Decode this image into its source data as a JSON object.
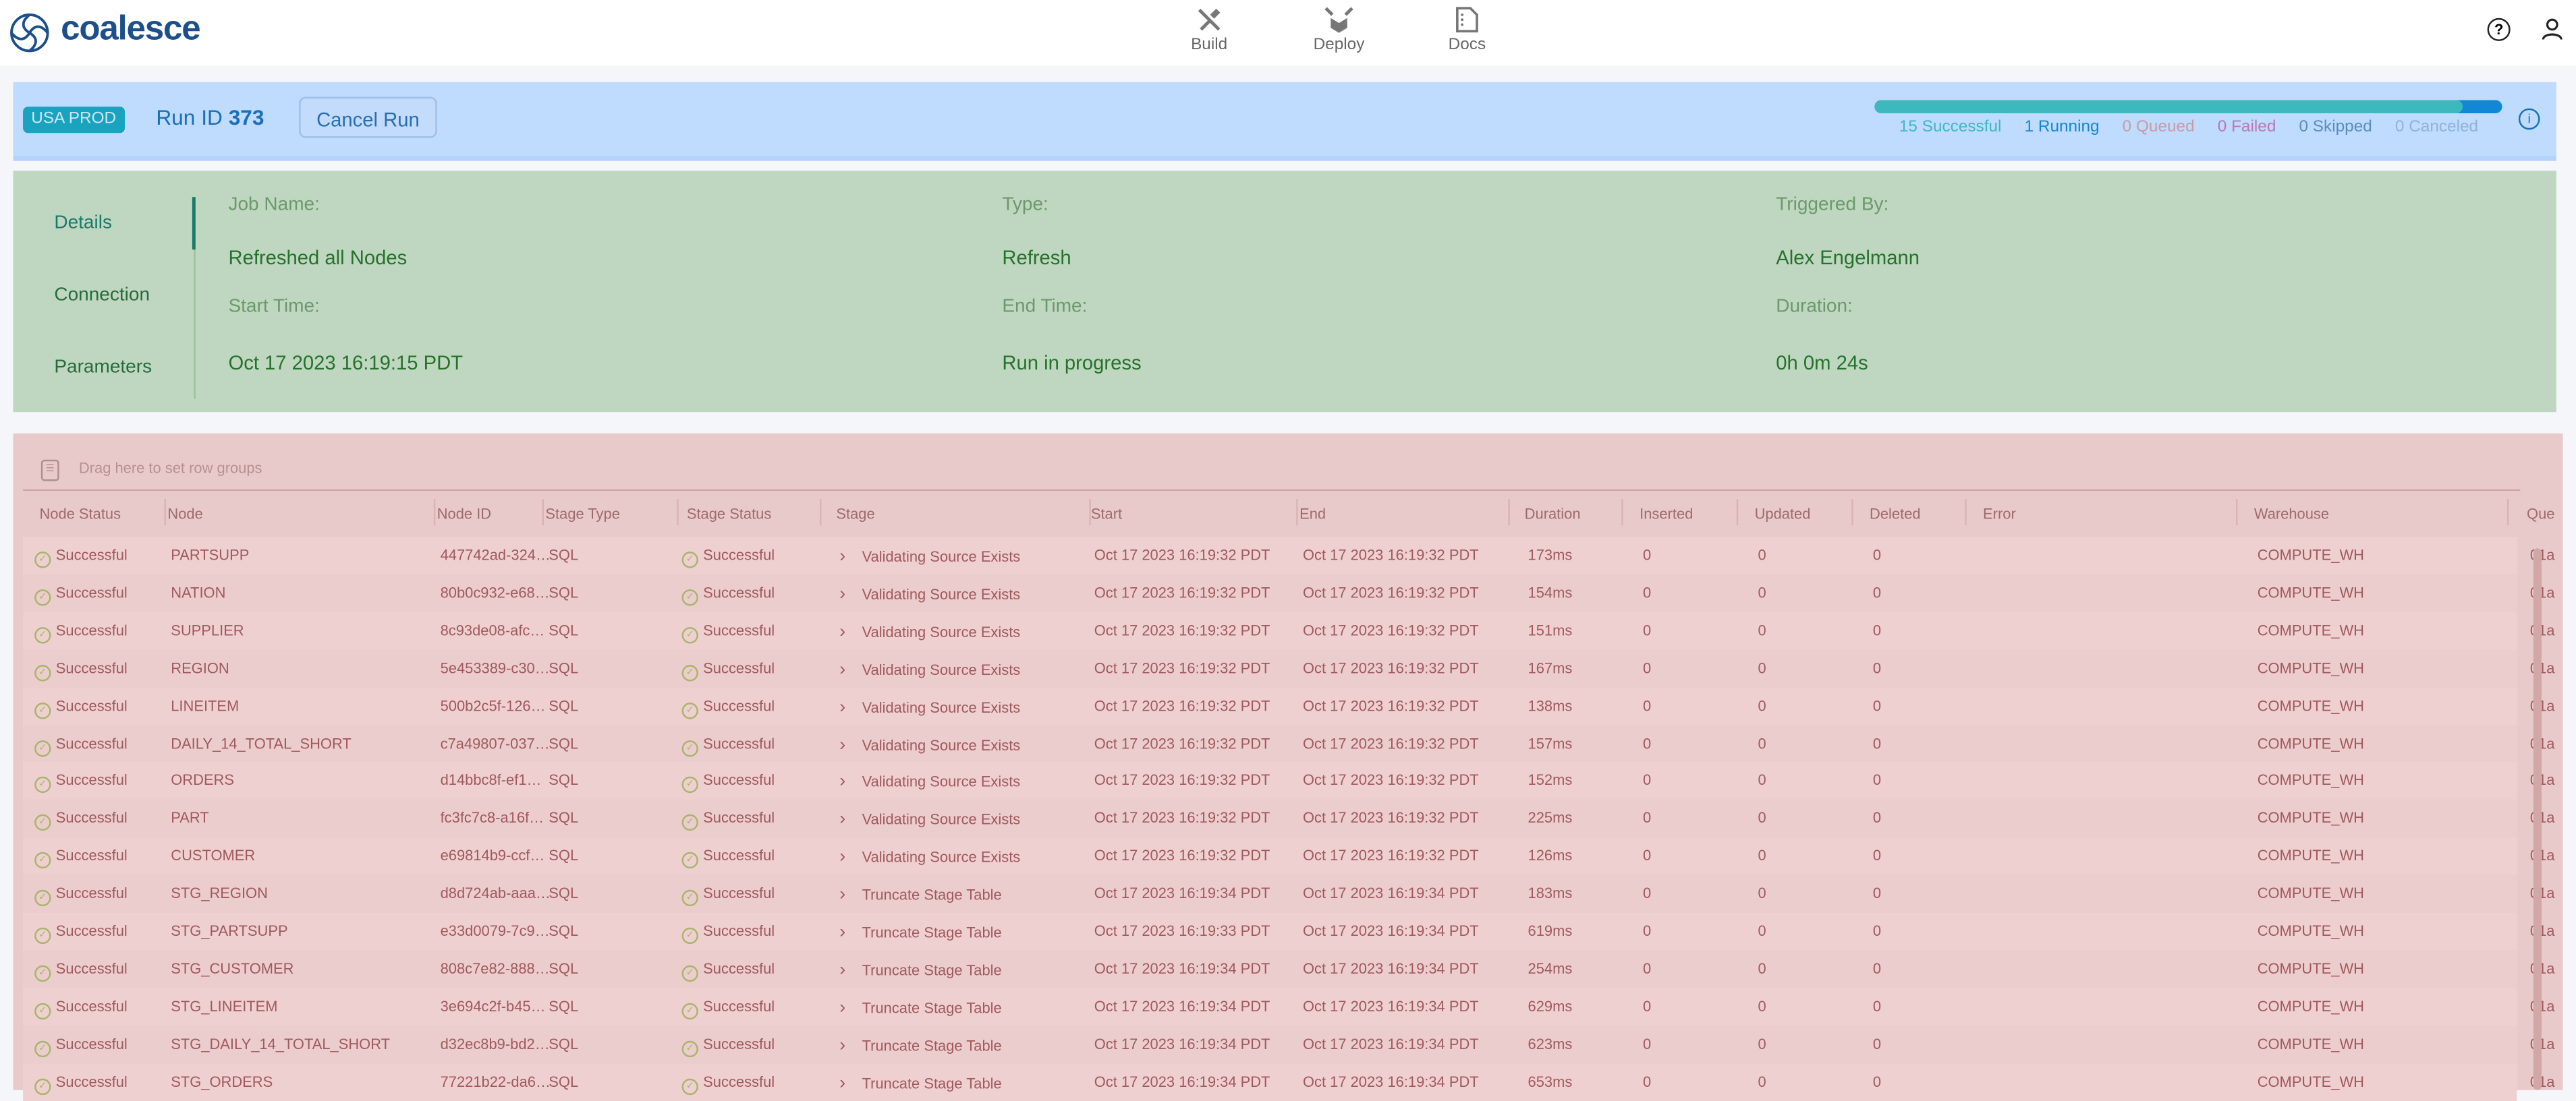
{
  "app": {
    "logo": "coalesce",
    "nav": [
      {
        "label": "Build",
        "icon": "tools-icon"
      },
      {
        "label": "Deploy",
        "icon": "deploy-box-icon"
      },
      {
        "label": "Docs",
        "icon": "document-icon"
      }
    ]
  },
  "run": {
    "environment": "USA PROD",
    "run_id_label": "Run ID",
    "run_id": "373",
    "cancel_label": "Cancel Run",
    "progress": {
      "successful": 15,
      "running": 1,
      "queued": 0,
      "failed": 0,
      "skipped": 0,
      "canceled": 0,
      "labels": [
        "15 Successful",
        "1 Running",
        "0 Queued",
        "0 Failed",
        "0 Skipped",
        "0 Canceled"
      ],
      "colors": [
        "#3db9be",
        "#1188d6",
        "#c89aa8",
        "#b979b5",
        "#5a8cc0",
        "#8fb2dc"
      ]
    }
  },
  "details": {
    "tabs": [
      "Details",
      "Connection",
      "Parameters"
    ],
    "active_tab": "Details",
    "fields": [
      {
        "label": "Job Name:",
        "value": "Refreshed all Nodes"
      },
      {
        "label": "Type:",
        "value": "Refresh"
      },
      {
        "label": "Triggered By:",
        "value": "Alex Engelmann"
      },
      {
        "label": "Start Time:",
        "value": "Oct 17 2023 16:19:15 PDT"
      },
      {
        "label": "End Time:",
        "value": "Run in progress"
      },
      {
        "label": "Duration:",
        "value": "0h 0m 24s"
      }
    ]
  },
  "table": {
    "row_group_placeholder": "Drag here to set row groups",
    "columns": [
      "Node Status",
      "Node",
      "Node ID",
      "Stage Type",
      "Stage Status",
      "Stage",
      "Start",
      "End",
      "Duration",
      "Inserted",
      "Updated",
      "Deleted",
      "Error",
      "Warehouse",
      "Que"
    ],
    "rows": [
      [
        "Successful",
        "PARTSUPP",
        "447742ad-324…",
        "SQL",
        "Successful",
        "Validating Source Exists",
        "Oct 17 2023 16:19:32 PDT",
        "Oct 17 2023 16:19:32 PDT",
        "173ms",
        "0",
        "0",
        "0",
        "",
        "COMPUTE_WH",
        "01a"
      ],
      [
        "Successful",
        "NATION",
        "80b0c932-e68…",
        "SQL",
        "Successful",
        "Validating Source Exists",
        "Oct 17 2023 16:19:32 PDT",
        "Oct 17 2023 16:19:32 PDT",
        "154ms",
        "0",
        "0",
        "0",
        "",
        "COMPUTE_WH",
        "01a"
      ],
      [
        "Successful",
        "SUPPLIER",
        "8c93de08-afc…",
        "SQL",
        "Successful",
        "Validating Source Exists",
        "Oct 17 2023 16:19:32 PDT",
        "Oct 17 2023 16:19:32 PDT",
        "151ms",
        "0",
        "0",
        "0",
        "",
        "COMPUTE_WH",
        "01a"
      ],
      [
        "Successful",
        "REGION",
        "5e453389-c30…",
        "SQL",
        "Successful",
        "Validating Source Exists",
        "Oct 17 2023 16:19:32 PDT",
        "Oct 17 2023 16:19:32 PDT",
        "167ms",
        "0",
        "0",
        "0",
        "",
        "COMPUTE_WH",
        "01a"
      ],
      [
        "Successful",
        "LINEITEM",
        "500b2c5f-126…",
        "SQL",
        "Successful",
        "Validating Source Exists",
        "Oct 17 2023 16:19:32 PDT",
        "Oct 17 2023 16:19:32 PDT",
        "138ms",
        "0",
        "0",
        "0",
        "",
        "COMPUTE_WH",
        "01a"
      ],
      [
        "Successful",
        "DAILY_14_TOTAL_SHORT",
        "c7a49807-037…",
        "SQL",
        "Successful",
        "Validating Source Exists",
        "Oct 17 2023 16:19:32 PDT",
        "Oct 17 2023 16:19:32 PDT",
        "157ms",
        "0",
        "0",
        "0",
        "",
        "COMPUTE_WH",
        "01a"
      ],
      [
        "Successful",
        "ORDERS",
        "d14bbc8f-ef1…",
        "SQL",
        "Successful",
        "Validating Source Exists",
        "Oct 17 2023 16:19:32 PDT",
        "Oct 17 2023 16:19:32 PDT",
        "152ms",
        "0",
        "0",
        "0",
        "",
        "COMPUTE_WH",
        "01a"
      ],
      [
        "Successful",
        "PART",
        "fc3fc7c8-a16f…",
        "SQL",
        "Successful",
        "Validating Source Exists",
        "Oct 17 2023 16:19:32 PDT",
        "Oct 17 2023 16:19:32 PDT",
        "225ms",
        "0",
        "0",
        "0",
        "",
        "COMPUTE_WH",
        "01a"
      ],
      [
        "Successful",
        "CUSTOMER",
        "e69814b9-ccf…",
        "SQL",
        "Successful",
        "Validating Source Exists",
        "Oct 17 2023 16:19:32 PDT",
        "Oct 17 2023 16:19:32 PDT",
        "126ms",
        "0",
        "0",
        "0",
        "",
        "COMPUTE_WH",
        "01a"
      ],
      [
        "Successful",
        "STG_REGION",
        "d8d724ab-aaa…",
        "SQL",
        "Successful",
        "Truncate Stage Table",
        "Oct 17 2023 16:19:34 PDT",
        "Oct 17 2023 16:19:34 PDT",
        "183ms",
        "0",
        "0",
        "0",
        "",
        "COMPUTE_WH",
        "01a"
      ],
      [
        "Successful",
        "STG_PARTSUPP",
        "e33d0079-7c9…",
        "SQL",
        "Successful",
        "Truncate Stage Table",
        "Oct 17 2023 16:19:33 PDT",
        "Oct 17 2023 16:19:34 PDT",
        "619ms",
        "0",
        "0",
        "0",
        "",
        "COMPUTE_WH",
        "01a"
      ],
      [
        "Successful",
        "STG_CUSTOMER",
        "808c7e82-888…",
        "SQL",
        "Successful",
        "Truncate Stage Table",
        "Oct 17 2023 16:19:34 PDT",
        "Oct 17 2023 16:19:34 PDT",
        "254ms",
        "0",
        "0",
        "0",
        "",
        "COMPUTE_WH",
        "01a"
      ],
      [
        "Successful",
        "STG_LINEITEM",
        "3e694c2f-b45…",
        "SQL",
        "Successful",
        "Truncate Stage Table",
        "Oct 17 2023 16:19:34 PDT",
        "Oct 17 2023 16:19:34 PDT",
        "629ms",
        "0",
        "0",
        "0",
        "",
        "COMPUTE_WH",
        "01a"
      ],
      [
        "Successful",
        "STG_DAILY_14_TOTAL_SHORT",
        "d32ec8b9-bd2…",
        "SQL",
        "Successful",
        "Truncate Stage Table",
        "Oct 17 2023 16:19:34 PDT",
        "Oct 17 2023 16:19:34 PDT",
        "623ms",
        "0",
        "0",
        "0",
        "",
        "COMPUTE_WH",
        "01a"
      ],
      [
        "Successful",
        "STG_ORDERS",
        "77221b22-da6…",
        "SQL",
        "Successful",
        "Truncate Stage Table",
        "Oct 17 2023 16:19:34 PDT",
        "Oct 17 2023 16:19:34 PDT",
        "653ms",
        "0",
        "0",
        "0",
        "",
        "COMPUTE_WH",
        "01a"
      ]
    ]
  }
}
